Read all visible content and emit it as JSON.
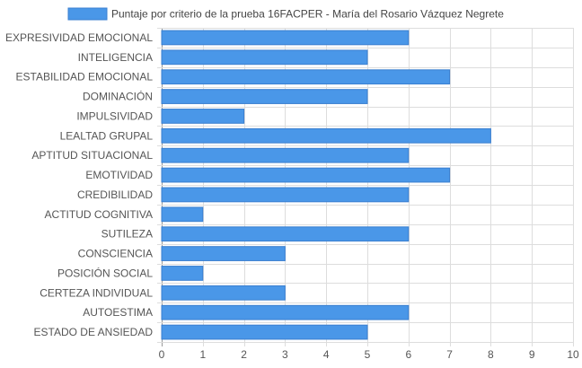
{
  "chart_data": {
    "type": "bar",
    "orientation": "horizontal",
    "categories": [
      "EXPRESIVIDAD EMOCIONAL",
      "INTELIGENCIA",
      "ESTABILIDAD EMOCIONAL",
      "DOMINACIÓN",
      "IMPULSIVIDAD",
      "LEALTAD GRUPAL",
      "APTITUD SITUACIONAL",
      "EMOTIVIDAD",
      "CREDIBILIDAD",
      "ACTITUD COGNITIVA",
      "SUTILEZA",
      "CONSCIENCIA",
      "POSICIÓN SOCIAL",
      "CERTEZA INDIVIDUAL",
      "AUTOESTIMA",
      "ESTADO DE ANSIEDAD"
    ],
    "series": [
      {
        "name": "Puntaje por criterio de la prueba 16FACPER - María del Rosario Vázquez Negrete",
        "values": [
          6,
          5,
          7,
          5,
          2,
          8,
          6,
          7,
          6,
          1,
          6,
          3,
          1,
          3,
          6,
          5
        ]
      }
    ],
    "xlim": [
      0,
      10
    ],
    "xticks": [
      "0",
      "1",
      "2",
      "3",
      "4",
      "5",
      "6",
      "7",
      "8",
      "9",
      "10"
    ],
    "grid": true,
    "legend_position": "top",
    "colors": {
      "bar_fill": "#4a97e8",
      "bar_stroke": "#3a7fd0",
      "grid": "#dddddd",
      "axis": "#999999",
      "text": "#555555"
    }
  }
}
